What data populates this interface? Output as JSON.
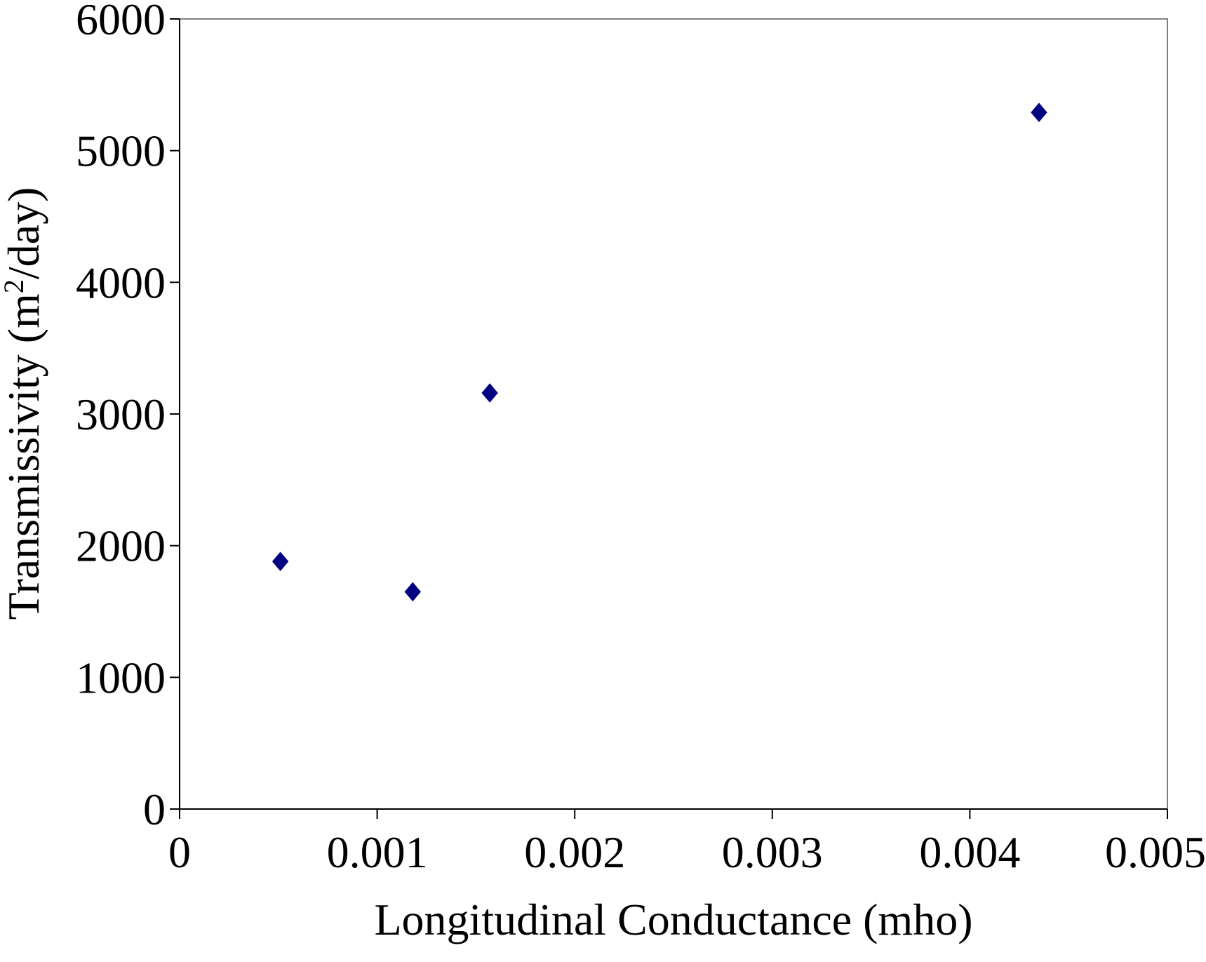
{
  "chart_data": {
    "type": "scatter",
    "title": "",
    "xlabel": "Longitudinal Conductance (mho)",
    "ylabel_parts": {
      "before": "Transmissivity (m",
      "superscript": "2",
      "after": "/day)"
    },
    "xlim": [
      0,
      0.005
    ],
    "ylim": [
      0,
      6000
    ],
    "x_ticks": [
      "0",
      "0.001",
      "0.002",
      "0.003",
      "0.004",
      "0.005"
    ],
    "y_ticks": [
      "0",
      "1000",
      "2000",
      "3000",
      "4000",
      "5000",
      "6000"
    ],
    "grid": false,
    "legend": "none",
    "marker": "diamond",
    "marker_color": "#000080",
    "series": [
      {
        "points": [
          {
            "x": 0.00051,
            "y": 1880
          },
          {
            "x": 0.00118,
            "y": 1650
          },
          {
            "x": 0.00157,
            "y": 3160
          },
          {
            "x": 0.00435,
            "y": 5290
          }
        ]
      }
    ]
  }
}
